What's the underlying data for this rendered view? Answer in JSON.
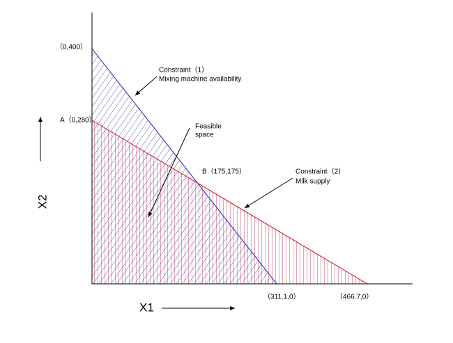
{
  "points": {
    "y_intercept_1": "（0,400）",
    "y_intercept_2": "A（0,280）",
    "intersection": "B（175,175）",
    "x_intercept_1": "（311.1,0）",
    "x_intercept_2": "（466.7,0）"
  },
  "annotations": {
    "constraint_1": {
      "title": "Constraint（1）",
      "description": "Mixing machine availability"
    },
    "feasible": {
      "line1": "Feasible",
      "line2": "space"
    },
    "constraint_2": {
      "title": "Constraint（2）",
      "description": "Milk supply"
    }
  },
  "axes": {
    "x": "X1",
    "y": "X2"
  }
}
